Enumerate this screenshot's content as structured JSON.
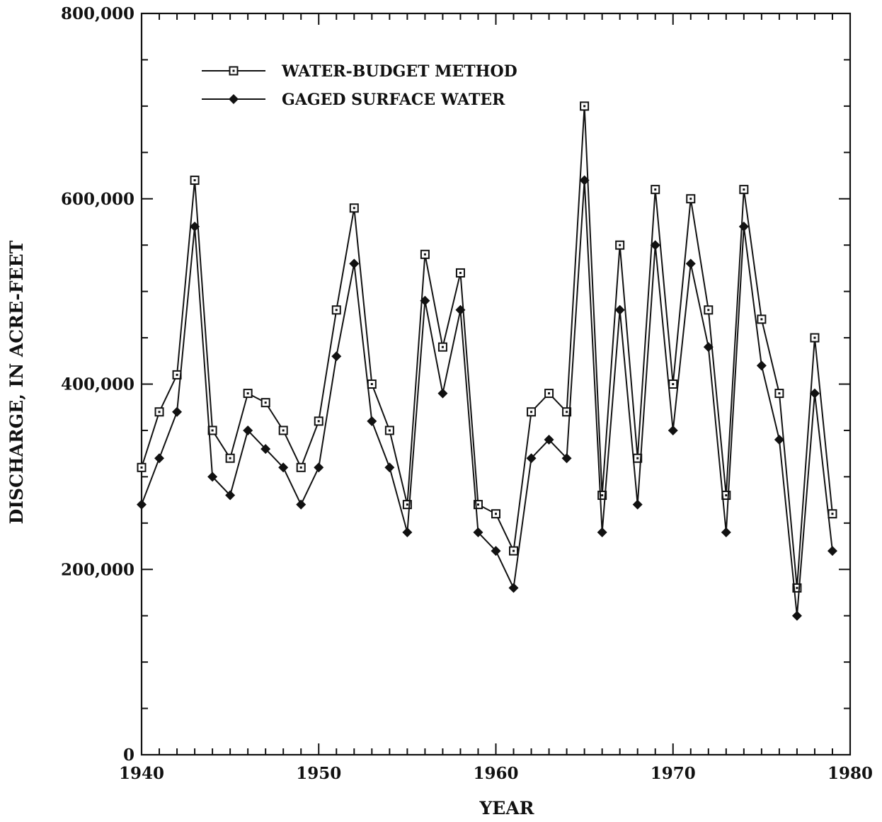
{
  "chart_data": {
    "type": "line",
    "title": "",
    "xlabel": "YEAR",
    "ylabel": "DISCHARGE, IN ACRE-FEET",
    "xlim": [
      1940,
      1980
    ],
    "ylim": [
      0,
      800000
    ],
    "x_ticks": [
      1940,
      1950,
      1960,
      1970,
      1980
    ],
    "x_tick_labels": [
      "1940",
      "1950",
      "1960",
      "1970",
      "1980"
    ],
    "y_ticks": [
      0,
      200000,
      400000,
      600000,
      800000
    ],
    "y_tick_labels": [
      "0",
      "200,000",
      "400,000",
      "600,000",
      "800,000"
    ],
    "x_minor_step": 1,
    "y_minor_step": 50000,
    "grid": false,
    "legend_position": "top-left",
    "x": [
      1940,
      1941,
      1942,
      1943,
      1944,
      1945,
      1946,
      1947,
      1948,
      1949,
      1950,
      1951,
      1952,
      1953,
      1954,
      1955,
      1956,
      1957,
      1958,
      1959,
      1960,
      1961,
      1962,
      1963,
      1964,
      1965,
      1966,
      1967,
      1968,
      1969,
      1970,
      1971,
      1972,
      1973,
      1974,
      1975,
      1976,
      1977,
      1978,
      1979
    ],
    "series": [
      {
        "name": "WATER-BUDGET METHOD",
        "marker": "open-square",
        "color": "#111111",
        "values": [
          310000,
          370000,
          410000,
          620000,
          350000,
          320000,
          390000,
          380000,
          350000,
          310000,
          360000,
          480000,
          590000,
          400000,
          350000,
          270000,
          540000,
          440000,
          520000,
          270000,
          260000,
          220000,
          370000,
          390000,
          370000,
          700000,
          280000,
          550000,
          320000,
          610000,
          400000,
          600000,
          480000,
          280000,
          610000,
          470000,
          390000,
          180000,
          450000,
          260000
        ]
      },
      {
        "name": "GAGED SURFACE WATER",
        "marker": "filled-diamond",
        "color": "#111111",
        "values": [
          270000,
          320000,
          370000,
          570000,
          300000,
          280000,
          350000,
          330000,
          310000,
          270000,
          310000,
          430000,
          530000,
          360000,
          310000,
          240000,
          490000,
          390000,
          480000,
          240000,
          220000,
          180000,
          320000,
          340000,
          320000,
          620000,
          240000,
          480000,
          270000,
          550000,
          350000,
          530000,
          440000,
          240000,
          570000,
          420000,
          340000,
          150000,
          390000,
          220000
        ]
      }
    ]
  }
}
